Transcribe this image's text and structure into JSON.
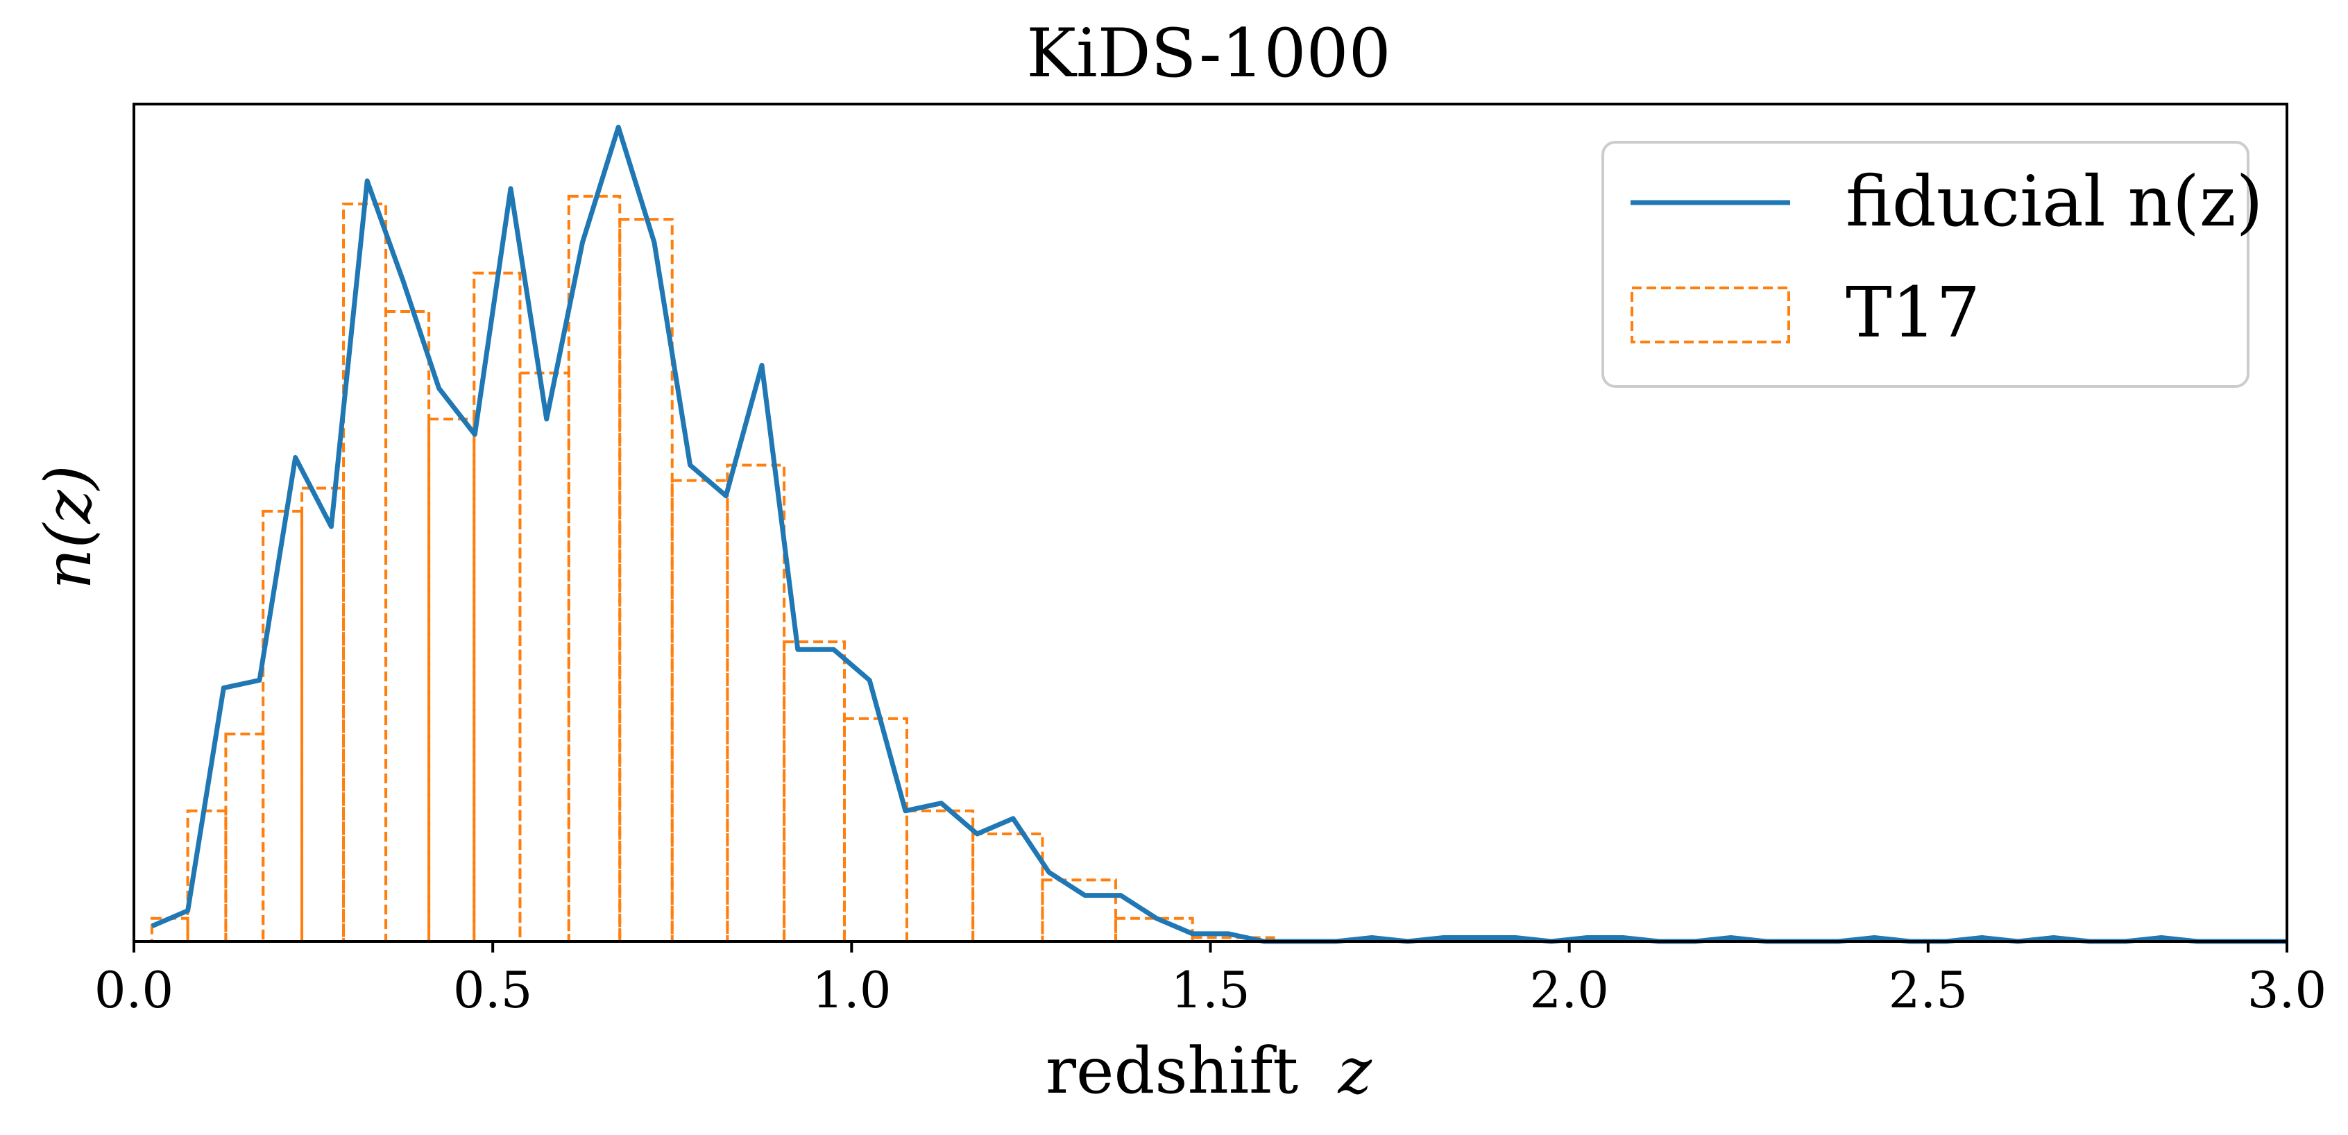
{
  "chart_data": {
    "type": "line",
    "title": "KiDS-1000",
    "xlabel": "redshift",
    "xlabel_symbol": "z",
    "ylabel": "n(z)",
    "xlim": [
      0.0,
      3.0
    ],
    "ylim": [
      0,
      1.09
    ],
    "yticks_visible": false,
    "grid": false,
    "legend_position": "top-right",
    "xticks": [
      "0.0",
      "0.5",
      "1.0",
      "1.5",
      "2.0",
      "2.5",
      "3.0"
    ],
    "series": [
      {
        "name": "fiducial n(z)",
        "kind": "line",
        "color": "#1f77b4",
        "x": [
          0.025,
          0.075,
          0.125,
          0.175,
          0.225,
          0.275,
          0.325,
          0.375,
          0.425,
          0.475,
          0.525,
          0.575,
          0.625,
          0.675,
          0.725,
          0.775,
          0.825,
          0.875,
          0.925,
          0.975,
          1.025,
          1.075,
          1.125,
          1.175,
          1.225,
          1.275,
          1.325,
          1.375,
          1.425,
          1.475,
          1.525,
          1.575,
          1.625,
          1.675,
          1.725,
          1.775,
          1.825,
          1.875,
          1.925,
          1.975,
          2.025,
          2.075,
          2.125,
          2.175,
          2.225,
          2.275,
          2.325,
          2.375,
          2.425,
          2.475,
          2.525,
          2.575,
          2.625,
          2.675,
          2.725,
          2.775,
          2.825,
          2.875,
          2.925,
          2.975,
          3.0
        ],
        "y": [
          0.02,
          0.04,
          0.33,
          0.34,
          0.63,
          0.54,
          0.99,
          0.86,
          0.72,
          0.66,
          0.98,
          0.68,
          0.91,
          1.06,
          0.91,
          0.62,
          0.58,
          0.75,
          0.38,
          0.38,
          0.34,
          0.17,
          0.18,
          0.14,
          0.16,
          0.09,
          0.06,
          0.06,
          0.03,
          0.01,
          0.01,
          0.0,
          0.0,
          0.0,
          0.005,
          0.0,
          0.005,
          0.005,
          0.005,
          0.0,
          0.005,
          0.005,
          0.0,
          0.0,
          0.005,
          0.0,
          0.0,
          0.0,
          0.005,
          0.0,
          0.0,
          0.005,
          0.0,
          0.005,
          0.0,
          0.0,
          0.005,
          0.0,
          0.0,
          0.0,
          0.0
        ]
      },
      {
        "name": "T17",
        "kind": "step-histogram",
        "color": "#ff7f0e",
        "bin_edges": [
          0.025,
          0.075,
          0.128,
          0.18,
          0.234,
          0.292,
          0.351,
          0.411,
          0.474,
          0.538,
          0.606,
          0.677,
          0.75,
          0.827,
          0.906,
          0.99,
          1.077,
          1.169,
          1.266,
          1.368,
          1.475,
          1.588,
          1.706,
          1.83,
          1.961,
          2.099,
          2.245,
          2.398,
          2.56,
          2.731,
          2.911,
          3.0
        ],
        "values": [
          0.03,
          0.17,
          0.27,
          0.56,
          0.59,
          0.96,
          0.82,
          0.68,
          0.87,
          0.74,
          0.97,
          0.94,
          0.6,
          0.62,
          0.39,
          0.29,
          0.17,
          0.14,
          0.08,
          0.03,
          0.005,
          0.0,
          0.0,
          0.0,
          0.0,
          0.0,
          0.0,
          0.0,
          0.0,
          0.0,
          0.0
        ]
      }
    ]
  },
  "colors": {
    "fiducial": "#1f77b4",
    "t17": "#ff7f0e",
    "axes": "#000000",
    "background": "#ffffff"
  }
}
